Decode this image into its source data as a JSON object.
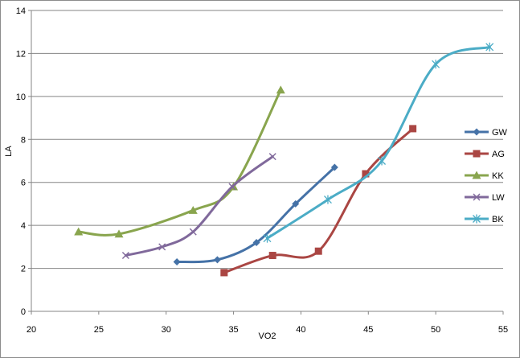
{
  "chart_data": {
    "type": "line",
    "title": "",
    "xlabel": "VO2",
    "ylabel": "LA",
    "xlim": [
      20,
      55
    ],
    "ylim": [
      0,
      14
    ],
    "xticks": [
      20,
      25,
      30,
      35,
      40,
      45,
      50,
      55
    ],
    "yticks": [
      0,
      2,
      4,
      6,
      8,
      10,
      12,
      14
    ],
    "grid": "horizontal",
    "legend": "right",
    "series": [
      {
        "name": "GW",
        "color": "#4572A7",
        "marker": "diamond",
        "points": [
          [
            30.8,
            2.3
          ],
          [
            33.8,
            2.4
          ],
          [
            36.7,
            3.2
          ],
          [
            39.6,
            5.0
          ],
          [
            42.5,
            6.7
          ]
        ]
      },
      {
        "name": "AG",
        "color": "#AA4643",
        "marker": "square",
        "points": [
          [
            34.3,
            1.8
          ],
          [
            37.9,
            2.6
          ],
          [
            41.3,
            2.8
          ],
          [
            44.8,
            6.4
          ],
          [
            48.3,
            8.5
          ]
        ]
      },
      {
        "name": "KK",
        "color": "#89A54E",
        "marker": "triangle",
        "points": [
          [
            23.5,
            3.7
          ],
          [
            26.5,
            3.6
          ],
          [
            32.0,
            4.7
          ],
          [
            35.0,
            5.8
          ],
          [
            38.5,
            10.3
          ]
        ]
      },
      {
        "name": "LW",
        "color": "#80699B",
        "marker": "x",
        "points": [
          [
            27.0,
            2.6
          ],
          [
            29.7,
            3.0
          ],
          [
            32.0,
            3.7
          ],
          [
            34.9,
            5.8
          ],
          [
            37.9,
            7.2
          ]
        ]
      },
      {
        "name": "BK",
        "color": "#4BACC6",
        "marker": "star",
        "points": [
          [
            37.5,
            3.4
          ],
          [
            42.0,
            5.2
          ],
          [
            46.0,
            7.0
          ],
          [
            50.0,
            11.5
          ],
          [
            54.0,
            12.3
          ]
        ]
      }
    ]
  }
}
